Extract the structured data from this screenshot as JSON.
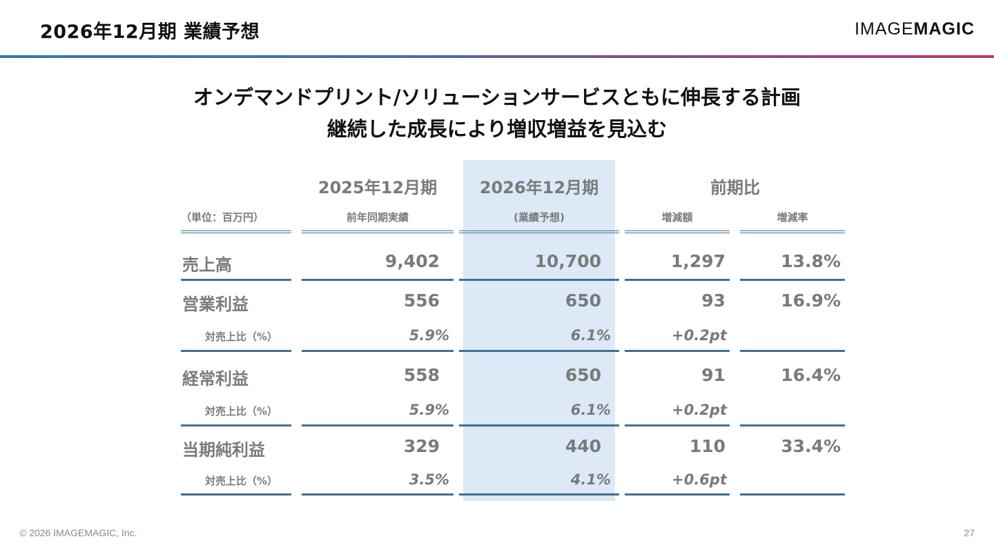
{
  "header": {
    "title": "2026年12月期 業績予想",
    "logo_part1": "IMAGE",
    "logo_part2": "MAGIC"
  },
  "headline": {
    "line1": "オンデマンドプリント/ソリューションサービスともに伸長する計画",
    "line2": "継続した成長により増収増益を見込む"
  },
  "table": {
    "unit": "（単位：百万円）",
    "columns": [
      {
        "title": "2025年12月期",
        "sub": "前年同期実績"
      },
      {
        "title": "2026年12月期",
        "sub": "(業績予想)"
      },
      {
        "title": "前期比",
        "sub1": "増減額",
        "sub2": "増減率"
      }
    ],
    "rows": [
      {
        "label": "売上高",
        "prev": "9,402",
        "fcst": "10,700",
        "diff": "1,297",
        "rate": "13.8%"
      },
      {
        "label": "営業利益",
        "prev": "556",
        "fcst": "650",
        "diff": "93",
        "rate": "16.9%",
        "sub_label": "対売上比（%）",
        "sub_prev": "5.9%",
        "sub_fcst": "6.1%",
        "sub_diff": "+0.2pt"
      },
      {
        "label": "経常利益",
        "prev": "558",
        "fcst": "650",
        "diff": "91",
        "rate": "16.4%",
        "sub_label": "対売上比（%）",
        "sub_prev": "5.9%",
        "sub_fcst": "6.1%",
        "sub_diff": "+0.2pt"
      },
      {
        "label": "当期純利益",
        "prev": "329",
        "fcst": "440",
        "diff": "110",
        "rate": "33.4%",
        "sub_label": "対売上比（%）",
        "sub_prev": "3.5%",
        "sub_fcst": "4.1%",
        "sub_diff": "+0.6pt"
      }
    ],
    "highlight_color": "#dde9f6",
    "line_color": "#3f6f93"
  },
  "footer": {
    "copyright": "© 2026 IMAGEMAGIC, Inc.",
    "page": "27"
  }
}
